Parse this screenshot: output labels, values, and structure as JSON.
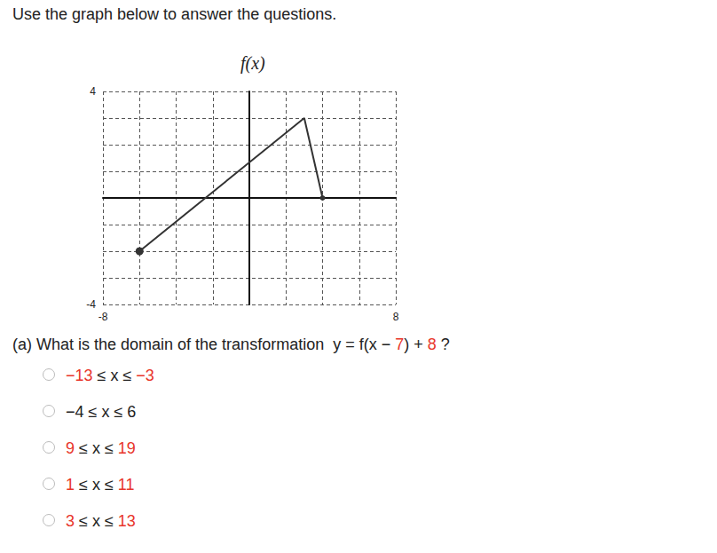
{
  "header": {
    "text": "Use the graph below to answer the questions."
  },
  "chart_data": {
    "type": "line",
    "title": "f(x)",
    "x": [
      -6,
      3,
      4
    ],
    "values": [
      -2,
      3,
      0
    ],
    "color": "#333333",
    "marker": "circle",
    "xlim": [
      -8,
      8
    ],
    "ylim": [
      -4,
      4
    ],
    "xticks": [
      -8,
      8
    ],
    "yticks": [
      -4,
      4
    ],
    "grid": true
  },
  "question": {
    "segments": [
      {
        "text": "(a) What is the domain of the transformation  y = f(x − "
      },
      {
        "text": "7",
        "color": "#e8352a"
      },
      {
        "text": ") + "
      },
      {
        "text": "8",
        "color": "#e8352a"
      },
      {
        "text": " ?"
      }
    ]
  },
  "options": [
    {
      "segments": [
        {
          "text": "−13",
          "color": "#e8352a"
        },
        {
          "text": " ≤ x ≤ "
        },
        {
          "text": "−3",
          "color": "#e8352a"
        }
      ]
    },
    {
      "segments": [
        {
          "text": "−4 ≤ x ≤ 6"
        }
      ]
    },
    {
      "segments": [
        {
          "text": "9",
          "color": "#e8352a"
        },
        {
          "text": " ≤ x ≤ "
        },
        {
          "text": "19",
          "color": "#e8352a"
        }
      ]
    },
    {
      "segments": [
        {
          "text": "1",
          "color": "#e8352a"
        },
        {
          "text": " ≤ x ≤ "
        },
        {
          "text": "11",
          "color": "#e8352a"
        }
      ]
    },
    {
      "segments": [
        {
          "text": "3",
          "color": "#e8352a"
        },
        {
          "text": " ≤ x ≤ "
        },
        {
          "text": "13",
          "color": "#e8352a"
        }
      ]
    }
  ]
}
